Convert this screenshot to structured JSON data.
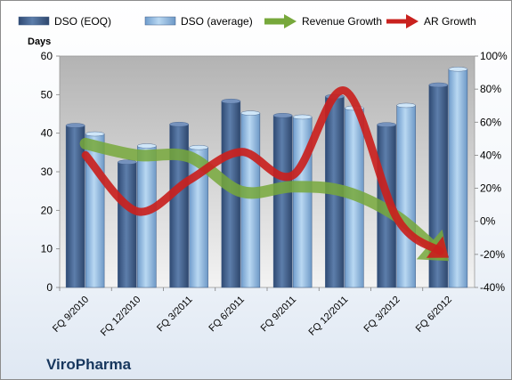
{
  "chart_data": {
    "type": "bar",
    "subtype": "bar with line overlay",
    "title": "",
    "company_label": "ViroPharma",
    "ylabel": "Days",
    "ylim": [
      0,
      60
    ],
    "y_ticks": [
      "0",
      "10",
      "20",
      "30",
      "40",
      "50",
      "60"
    ],
    "y2lim": [
      -40,
      100
    ],
    "y2_ticks": [
      "-40%",
      "-20%",
      "0%",
      "20%",
      "40%",
      "60%",
      "80%",
      "100%"
    ],
    "categories": [
      "FQ 9/2010",
      "FQ 12/2010",
      "FQ 3/2011",
      "FQ 6/2011",
      "FQ 9/2011",
      "FQ 12/2011",
      "FQ 3/2012",
      "FQ 6/2012"
    ],
    "series": [
      {
        "name": "DSO (EOQ)",
        "kind": "bar",
        "axis": "left",
        "color": "#4f6d99",
        "values": [
          42,
          32.5,
          42.3,
          48.3,
          44.6,
          49.5,
          42.2,
          52.5
        ]
      },
      {
        "name": "DSO (average)",
        "kind": "bar",
        "axis": "left",
        "color": "#9dc3e6",
        "values": [
          39.8,
          36.7,
          36.3,
          45.2,
          44.2,
          46.5,
          47.2,
          56.6
        ]
      },
      {
        "name": "Revenue Growth",
        "kind": "line",
        "axis": "right",
        "unit": "%",
        "color": "#77a83b",
        "values": [
          47,
          40,
          39,
          18,
          21,
          18,
          3,
          -24
        ]
      },
      {
        "name": "AR Growth",
        "kind": "line",
        "axis": "right",
        "unit": "%",
        "color": "#c9211e",
        "values": [
          40,
          6,
          25,
          42,
          28,
          79,
          2,
          -22
        ]
      }
    ],
    "grid": false,
    "legend_position": "top"
  }
}
